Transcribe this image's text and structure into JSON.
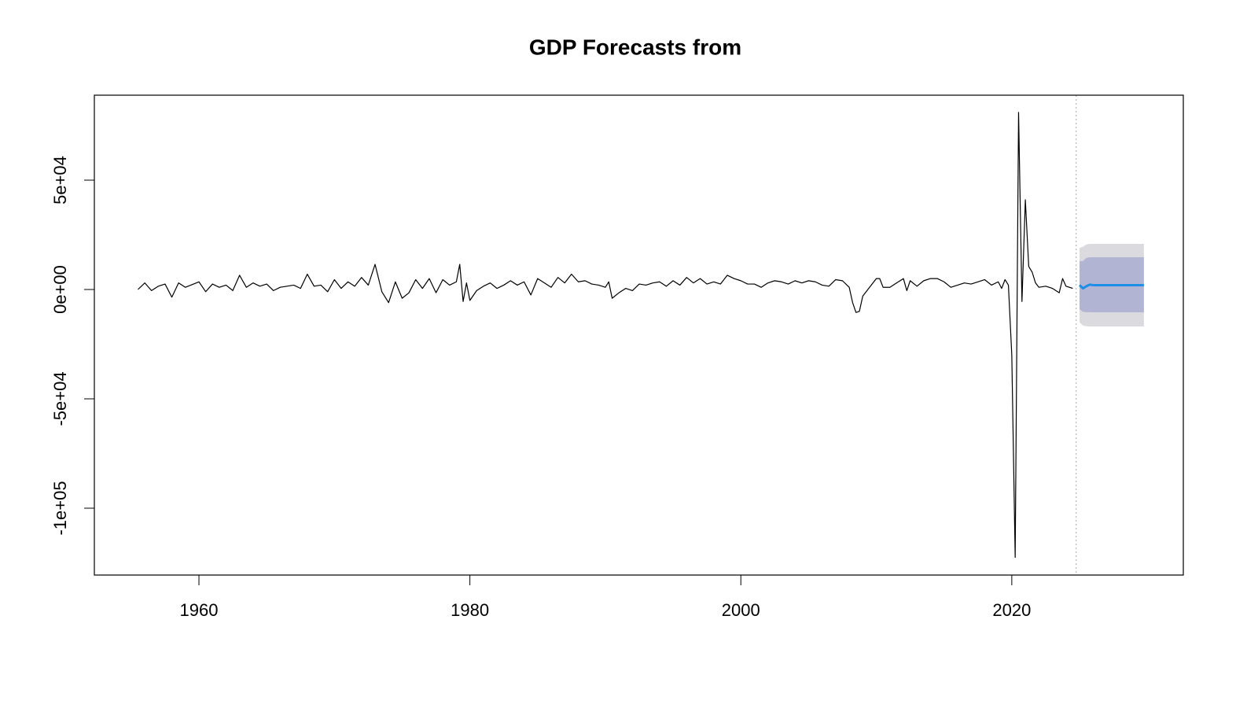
{
  "chart_data": {
    "type": "line",
    "title": "GDP Forecasts from",
    "xlim": [
      1952.28,
      2032.66
    ],
    "ylim": [
      -130576,
      88849
    ],
    "xticks": [
      1960,
      1980,
      2000,
      2020
    ],
    "yticks": [
      {
        "value": -100000,
        "label": "-1e+05"
      },
      {
        "value": -50000,
        "label": "-5e+04"
      },
      {
        "value": 0,
        "label": "0e+00"
      },
      {
        "value": 50000,
        "label": "5e+04"
      }
    ],
    "vline": 2024.75,
    "series": [
      {
        "color": "#000000",
        "x": [
          1955.5,
          1956,
          1956.5,
          1957,
          1957.5,
          1958,
          1958.5,
          1959,
          1960,
          1960.5,
          1961,
          1961.5,
          1962,
          1962.5,
          1963,
          1963.5,
          1964,
          1964.5,
          1965,
          1965.5,
          1966,
          1967,
          1967.5,
          1968,
          1968.5,
          1969,
          1969.5,
          1970,
          1970.5,
          1971,
          1971.5,
          1972,
          1972.5,
          1973,
          1973.5,
          1974,
          1974.5,
          1975,
          1975.5,
          1976,
          1976.5,
          1977,
          1977.5,
          1978,
          1978.5,
          1979,
          1979.25,
          1979.5,
          1979.75,
          1980,
          1980.5,
          1981,
          1981.5,
          1982,
          1982.5,
          1983,
          1983.5,
          1984,
          1984.5,
          1985,
          1985.5,
          1986,
          1986.5,
          1987,
          1987.5,
          1988,
          1988.5,
          1989,
          1989.5,
          1990,
          1990.25,
          1990.5,
          1991,
          1991.5,
          1992,
          1992.5,
          1993,
          1993.5,
          1994,
          1994.5,
          1995,
          1995.5,
          1996,
          1996.5,
          1997,
          1997.5,
          1998,
          1998.5,
          1999,
          1999.5,
          2000,
          2000.5,
          2001,
          2001.5,
          2002,
          2002.5,
          2003,
          2003.5,
          2004,
          2004.5,
          2005,
          2005.5,
          2006,
          2006.5,
          2007,
          2007.5,
          2008,
          2008.25,
          2008.5,
          2008.75,
          2009,
          2009.5,
          2010,
          2010.25,
          2010.5,
          2011,
          2011.5,
          2012,
          2012.25,
          2012.5,
          2013,
          2013.5,
          2014,
          2014.5,
          2015,
          2015.5,
          2016,
          2016.5,
          2017,
          2017.5,
          2018,
          2018.5,
          2019,
          2019.25,
          2019.5,
          2019.75,
          2020,
          2020.25,
          2020.5,
          2020.75,
          2021,
          2021.25,
          2021.5,
          2021.75,
          2022,
          2022.5,
          2023,
          2023.5,
          2023.75,
          2024,
          2024.5
        ],
        "values": [
          0,
          3000,
          -500,
          1500,
          2500,
          -3500,
          3000,
          1000,
          3500,
          -1000,
          2500,
          1000,
          2000,
          -500,
          6500,
          1000,
          3000,
          1500,
          2500,
          -500,
          1000,
          2000,
          500,
          7000,
          1500,
          2000,
          -1000,
          4500,
          500,
          3500,
          1500,
          5500,
          2000,
          11500,
          -1000,
          -6000,
          3500,
          -4000,
          -1500,
          4500,
          500,
          5000,
          -1500,
          4500,
          2000,
          3500,
          11500,
          -5500,
          3000,
          -5000,
          -500,
          1500,
          3000,
          500,
          2000,
          4000,
          2000,
          3500,
          -2500,
          5000,
          3000,
          1000,
          5500,
          3000,
          7000,
          3500,
          4000,
          2500,
          2000,
          1000,
          3500,
          -4000,
          -1500,
          500,
          -500,
          2500,
          2000,
          3000,
          3500,
          1500,
          4000,
          2000,
          5500,
          3000,
          5000,
          2500,
          3500,
          2500,
          6500,
          5000,
          4000,
          2500,
          2500,
          1000,
          3000,
          4000,
          3500,
          2500,
          4000,
          3000,
          4000,
          3500,
          2000,
          1500,
          4500,
          4000,
          1000,
          -6000,
          -10500,
          -10000,
          -3000,
          1000,
          5000,
          5000,
          1000,
          1000,
          3000,
          5000,
          -500,
          4000,
          1500,
          4000,
          5000,
          5000,
          3500,
          1000,
          2000,
          3000,
          2500,
          3500,
          4500,
          2000,
          3500,
          500,
          4500,
          2000,
          -30000,
          -122500,
          81000,
          -5500,
          41000,
          10500,
          8000,
          3000,
          1000,
          1500,
          500,
          -1500,
          5000,
          1500,
          500
        ]
      }
    ],
    "forecast": {
      "color": "#1f8ee6",
      "color80": "#b1b5d3",
      "color95": "#dbdbdf",
      "x": [
        2025,
        2025.25,
        2025.5,
        2025.75,
        2026,
        2026.25,
        2026.5,
        2026.75,
        2027,
        2027.25,
        2027.5,
        2027.75,
        2028,
        2028.25,
        2028.5,
        2028.75,
        2029,
        2029.25,
        2029.5,
        2029.75
      ],
      "mean": [
        2000,
        500,
        1500,
        2200,
        2000,
        2000,
        2000,
        2000,
        2000,
        2000,
        2000,
        2000,
        2000,
        2000,
        2000,
        2000,
        2000,
        2000,
        2000,
        2000
      ],
      "lo80": [
        -9000,
        -10200,
        -10400,
        -10400,
        -10432,
        -10432,
        -10432,
        -10432,
        -10432,
        -10432,
        -10432,
        -10432,
        -10432,
        -10432,
        -10432,
        -10432,
        -10432,
        -10432,
        -10432,
        -10432
      ],
      "hi80": [
        13000,
        13000,
        14500,
        14750,
        14750,
        14750,
        14750,
        14750,
        14750,
        14750,
        14750,
        14750,
        14750,
        14750,
        14750,
        14750,
        14750,
        14750,
        14750,
        14750
      ],
      "lo95": [
        -15000,
        -16500,
        -16800,
        -16900,
        -16906,
        -16906,
        -16906,
        -16906,
        -16906,
        -16906,
        -16906,
        -16906,
        -16906,
        -16906,
        -16906,
        -16906,
        -16906,
        -16906,
        -16906,
        -16906
      ],
      "hi95": [
        19000,
        19500,
        20600,
        20863,
        20863,
        20863,
        20863,
        20863,
        20863,
        20863,
        20863,
        20863,
        20863,
        20863,
        20863,
        20863,
        20863,
        20863,
        20863,
        20863
      ]
    }
  }
}
